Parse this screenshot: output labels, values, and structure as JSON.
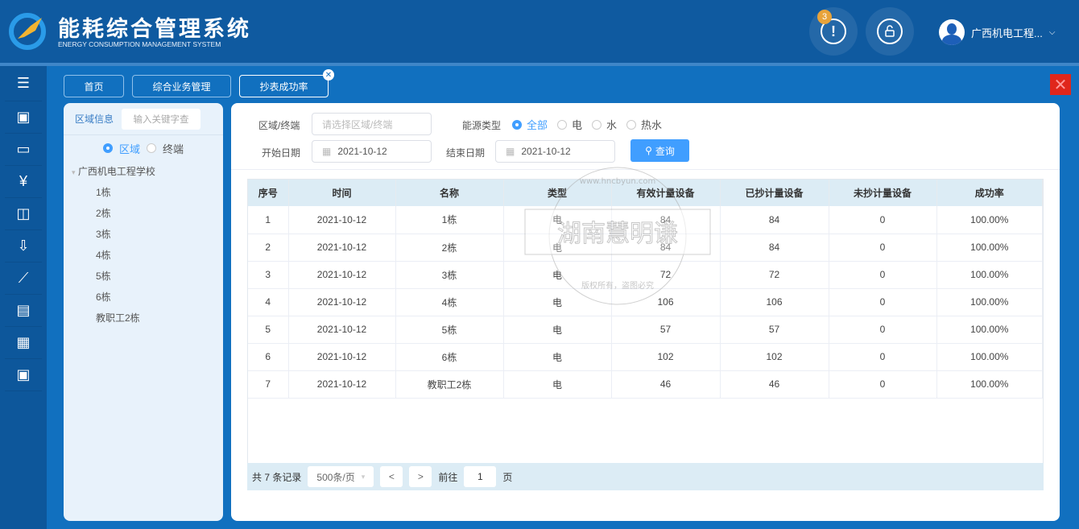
{
  "header": {
    "title": "能耗综合管理系统",
    "subtitle": "ENERGY CONSUMPTION MANAGEMENT SYSTEM",
    "alert_badge": "3",
    "alert_glyph": "!",
    "user_name": "广西机电工程...",
    "user_caret": "⌵"
  },
  "sidebar": {
    "items": [
      "menu-icon",
      "user-settings-icon",
      "folder-icon",
      "yuan-icon",
      "presentation-chart-icon",
      "folder-download-icon",
      "line-chart-icon",
      "report-settings-icon",
      "apps-icon",
      "user-settings-icon"
    ],
    "glyphs": [
      "☰",
      "▣",
      "▭",
      "¥",
      "◫",
      "⇩",
      "⟋",
      "▤",
      "▦",
      "▣"
    ]
  },
  "tabs": [
    {
      "label": "首页"
    },
    {
      "label": "综合业务管理"
    },
    {
      "label": "抄表成功率",
      "close": "✕"
    }
  ],
  "close_glyph": "✕",
  "left_panel": {
    "title": "区域信息",
    "search_placeholder": "输入关键字查",
    "radio_region": "区域",
    "radio_terminal": "终端",
    "tree_arrow": "▾",
    "root": "广西机电工程学校",
    "children": [
      "1栋",
      "2栋",
      "3栋",
      "4栋",
      "5栋",
      "6栋",
      "教职工2栋"
    ]
  },
  "filters": {
    "area_label": "区域/终端",
    "area_placeholder": "请选择区域/终端",
    "energy_label": "能源类型",
    "energy_options": [
      "全部",
      "电",
      "水",
      "热水"
    ],
    "start_label": "开始日期",
    "start_value": "2021-10-12",
    "end_label": "结束日期",
    "end_value": "2021-10-12",
    "query_label": "查询",
    "calendar_glyph": "▦",
    "search_glyph": "⚲"
  },
  "table": {
    "columns": [
      "序号",
      "时间",
      "名称",
      "类型",
      "有效计量设备",
      "已抄计量设备",
      "未抄计量设备",
      "成功率"
    ],
    "rows": [
      [
        "1",
        "2021-10-12",
        "1栋",
        "电",
        "84",
        "84",
        "0",
        "100.00%"
      ],
      [
        "2",
        "2021-10-12",
        "2栋",
        "电",
        "84",
        "84",
        "0",
        "100.00%"
      ],
      [
        "3",
        "2021-10-12",
        "3栋",
        "电",
        "72",
        "72",
        "0",
        "100.00%"
      ],
      [
        "4",
        "2021-10-12",
        "4栋",
        "电",
        "106",
        "106",
        "0",
        "100.00%"
      ],
      [
        "5",
        "2021-10-12",
        "5栋",
        "电",
        "57",
        "57",
        "0",
        "100.00%"
      ],
      [
        "6",
        "2021-10-12",
        "6栋",
        "电",
        "102",
        "102",
        "0",
        "100.00%"
      ],
      [
        "7",
        "2021-10-12",
        "教职工2栋",
        "电",
        "46",
        "46",
        "0",
        "100.00%"
      ]
    ]
  },
  "pager": {
    "total": "共 7 条记录",
    "page_size": "500条/页",
    "prev": "<",
    "next": ">",
    "goto": "前往",
    "page": "1",
    "page_unit": "页",
    "caret": "▾"
  },
  "watermark": {
    "name": "湖南慧明谦",
    "url": "www.hncbyun.com",
    "notice": "版权所有，盗图必究"
  },
  "colors": {
    "header": "#0f5aa0",
    "accent": "#409eff",
    "close": "#e0261b",
    "table_header": "#dcecf5"
  }
}
